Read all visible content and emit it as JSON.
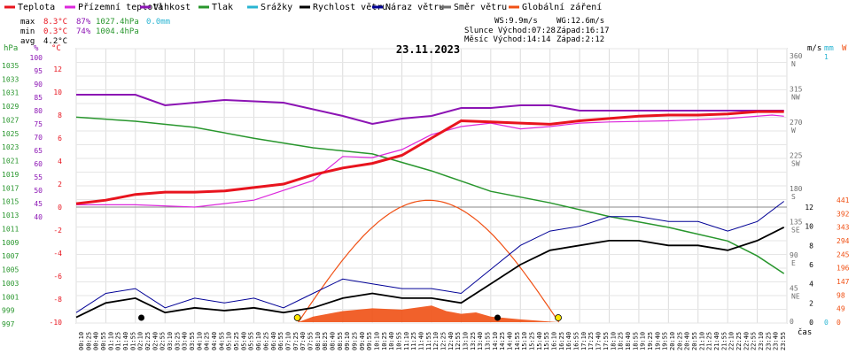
{
  "legend": [
    {
      "label": "Teplota",
      "color": "#e8141e"
    },
    {
      "label": "Přízemní teplota",
      "color": "#dc28dc"
    },
    {
      "label": "Vlhkost",
      "color": "#8c14b4"
    },
    {
      "label": "Tlak",
      "color": "#28962d"
    },
    {
      "label": "Srážky",
      "color": "#28b4d2"
    },
    {
      "label": "Rychlost větru",
      "color": "#000000"
    },
    {
      "label": "Náraz větru",
      "color": "#000096"
    },
    {
      "label": "Směr větru",
      "color": "#6e6e6e"
    },
    {
      "label": "Globální záření",
      "color": "#f05014"
    }
  ],
  "stats": {
    "max_label": "max",
    "min_label": "min",
    "avg_label": "avg",
    "max_temp": "8.3°C",
    "max_hum": "87%",
    "max_press": "1027.4hPa",
    "max_rain": "0.0mm",
    "min_temp": "0.3°C",
    "min_hum": "74%",
    "min_press": "1004.4hPa",
    "avg_temp": "4.2°C",
    "ws": "WS:9.9m/s",
    "wg": "WG:12.6m/s",
    "sun_rise": "Slunce Východ:07:28",
    "sun_set": "Západ:16:17",
    "moon_rise": "Měsíc  Východ:14:14",
    "moon_set": "Západ:2:12"
  },
  "date": "23.11.2023",
  "axis_units": {
    "hpa": "hPa",
    "pct": "%",
    "degc": "°C",
    "ms": "m/s",
    "mm": "mm",
    "wm2": "W",
    "time": "čas"
  },
  "axes": {
    "hpa_ticks": [
      "1035",
      "1033",
      "1031",
      "1029",
      "1027",
      "1025",
      "1023",
      "1021",
      "1019",
      "1017",
      "1015",
      "1013",
      "1011",
      "1009",
      "1007",
      "1005",
      "1003",
      "1001",
      "999",
      "997"
    ],
    "pct_ticks": [
      "100",
      "95",
      "90",
      "85",
      "80",
      "75",
      "70",
      "65",
      "60",
      "55",
      "50",
      "45",
      "40"
    ],
    "temp_ticks": [
      "12",
      "10",
      "8",
      "6",
      "4",
      "2",
      "0",
      "-2",
      "-4",
      "-6",
      "-8",
      "-10"
    ],
    "dir_ticks": [
      [
        "360",
        "N"
      ],
      [
        "315",
        "NW"
      ],
      [
        "270",
        "W"
      ],
      [
        "225",
        "SW"
      ],
      [
        "180",
        "S"
      ],
      [
        "135",
        "SE"
      ],
      [
        "90",
        "E"
      ],
      [
        "45",
        "NE"
      ],
      [
        "0",
        ""
      ]
    ],
    "ms_ticks": [
      "12",
      "10",
      "8",
      "6",
      "4",
      "2",
      "0"
    ],
    "mm_ticks": [
      "1",
      "0"
    ],
    "wm2_ticks": [
      "441",
      "392",
      "343",
      "294",
      "245",
      "196",
      "147",
      "98",
      "49",
      "0"
    ],
    "time_ticks": [
      "00:10",
      "00:25",
      "00:40",
      "00:55",
      "01:10",
      "01:25",
      "01:40",
      "01:55",
      "02:10",
      "02:25",
      "02:40",
      "02:55",
      "03:10",
      "03:25",
      "03:40",
      "03:55",
      "04:10",
      "04:25",
      "04:40",
      "04:55",
      "05:10",
      "05:25",
      "05:40",
      "05:55",
      "06:10",
      "06:25",
      "06:40",
      "06:55",
      "07:10",
      "07:25",
      "07:40",
      "07:55",
      "08:10",
      "08:25",
      "08:40",
      "08:55",
      "09:10",
      "09:25",
      "09:40",
      "09:55",
      "10:10",
      "10:25",
      "10:40",
      "10:55",
      "11:10",
      "11:25",
      "11:40",
      "11:55",
      "12:10",
      "12:25",
      "12:40",
      "12:55",
      "13:10",
      "13:25",
      "13:40",
      "13:55",
      "14:10",
      "14:25",
      "14:40",
      "14:55",
      "15:10",
      "15:25",
      "15:40",
      "15:55",
      "16:10",
      "16:25",
      "16:40",
      "16:55",
      "17:10",
      "17:25",
      "17:40",
      "17:55",
      "18:10",
      "18:25",
      "18:40",
      "18:55",
      "19:10",
      "19:25",
      "19:40",
      "19:55",
      "20:10",
      "20:25",
      "20:40",
      "20:55",
      "21:10",
      "21:25",
      "21:40",
      "21:55",
      "22:10",
      "22:25",
      "22:40",
      "22:55",
      "23:10",
      "23:25",
      "23:40",
      "23:55"
    ]
  },
  "chart_data": {
    "type": "line",
    "x_unit": "hour of day",
    "title": "23.11.2023",
    "series": [
      {
        "name": "Teplota",
        "unit": "°C",
        "color": "#e8141e",
        "points": [
          [
            0,
            0.3
          ],
          [
            1,
            0.6
          ],
          [
            2,
            1.1
          ],
          [
            3,
            1.3
          ],
          [
            4,
            1.3
          ],
          [
            5,
            1.4
          ],
          [
            6,
            1.7
          ],
          [
            7,
            2.0
          ],
          [
            8,
            2.8
          ],
          [
            9,
            3.4
          ],
          [
            10,
            3.8
          ],
          [
            11,
            4.5
          ],
          [
            12,
            6.0
          ],
          [
            13,
            7.5
          ],
          [
            14,
            7.4
          ],
          [
            15,
            7.3
          ],
          [
            16,
            7.2
          ],
          [
            17,
            7.5
          ],
          [
            18,
            7.7
          ],
          [
            19,
            7.9
          ],
          [
            20,
            8.0
          ],
          [
            21,
            8.0
          ],
          [
            22,
            8.1
          ],
          [
            23,
            8.3
          ],
          [
            23.9,
            8.3
          ]
        ]
      },
      {
        "name": "Přízemní teplota",
        "unit": "°C",
        "color": "#dc28dc",
        "points": [
          [
            0,
            0.2
          ],
          [
            2,
            0.2
          ],
          [
            4,
            0.0
          ],
          [
            6,
            0.6
          ],
          [
            8,
            2.3
          ],
          [
            9,
            4.4
          ],
          [
            10,
            4.3
          ],
          [
            11,
            5.0
          ],
          [
            12,
            6.3
          ],
          [
            13,
            7.0
          ],
          [
            14,
            7.3
          ],
          [
            15,
            6.8
          ],
          [
            16,
            7.0
          ],
          [
            17,
            7.3
          ],
          [
            18,
            7.4
          ],
          [
            20,
            7.5
          ],
          [
            22,
            7.7
          ],
          [
            23.5,
            8.0
          ],
          [
            23.9,
            7.9
          ]
        ]
      },
      {
        "name": "Vlhkost",
        "unit": "%",
        "color": "#8c14b4",
        "points": [
          [
            0,
            86
          ],
          [
            2,
            86
          ],
          [
            3,
            82
          ],
          [
            5,
            84
          ],
          [
            7,
            83
          ],
          [
            9,
            78
          ],
          [
            10,
            75
          ],
          [
            11,
            77
          ],
          [
            12,
            78
          ],
          [
            13,
            81
          ],
          [
            14,
            81
          ],
          [
            15,
            82
          ],
          [
            16,
            82
          ],
          [
            17,
            80
          ],
          [
            18,
            80
          ],
          [
            19,
            80
          ],
          [
            20,
            80
          ],
          [
            21,
            80
          ],
          [
            22,
            80
          ],
          [
            23,
            80
          ],
          [
            23.9,
            80
          ]
        ]
      },
      {
        "name": "Tlak",
        "unit": "hPa",
        "color": "#28962d",
        "points": [
          [
            0,
            1027.4
          ],
          [
            2,
            1026.8
          ],
          [
            4,
            1025.9
          ],
          [
            6,
            1024.3
          ],
          [
            8,
            1022.9
          ],
          [
            10,
            1022.0
          ],
          [
            12,
            1019.5
          ],
          [
            13,
            1018.0
          ],
          [
            14,
            1016.5
          ],
          [
            16,
            1014.8
          ],
          [
            18,
            1012.8
          ],
          [
            20,
            1011.2
          ],
          [
            22,
            1009.2
          ],
          [
            23,
            1007.0
          ],
          [
            23.9,
            1004.4
          ]
        ]
      },
      {
        "name": "Rychlost větru",
        "unit": "m/s",
        "color": "#000000",
        "points": [
          [
            0,
            0.5
          ],
          [
            1,
            2.0
          ],
          [
            2,
            2.5
          ],
          [
            3,
            1.0
          ],
          [
            4,
            1.5
          ],
          [
            5,
            1.2
          ],
          [
            6,
            1.5
          ],
          [
            7,
            1.0
          ],
          [
            8,
            1.5
          ],
          [
            9,
            2.5
          ],
          [
            10,
            3.0
          ],
          [
            11,
            2.5
          ],
          [
            12,
            2.5
          ],
          [
            13,
            2.0
          ],
          [
            14,
            4.0
          ],
          [
            15,
            6.0
          ],
          [
            16,
            7.5
          ],
          [
            17,
            8.0
          ],
          [
            18,
            8.5
          ],
          [
            19,
            8.5
          ],
          [
            20,
            8.0
          ],
          [
            21,
            8.0
          ],
          [
            22,
            7.5
          ],
          [
            23,
            8.5
          ],
          [
            23.9,
            9.9
          ]
        ]
      },
      {
        "name": "Náraz větru",
        "unit": "m/s",
        "color": "#000096",
        "points": [
          [
            0,
            1.0
          ],
          [
            1,
            3.0
          ],
          [
            2,
            3.5
          ],
          [
            3,
            1.5
          ],
          [
            4,
            2.5
          ],
          [
            5,
            2.0
          ],
          [
            6,
            2.5
          ],
          [
            7,
            1.5
          ],
          [
            8,
            3.0
          ],
          [
            9,
            4.5
          ],
          [
            10,
            4.0
          ],
          [
            11,
            3.5
          ],
          [
            12,
            3.5
          ],
          [
            13,
            3.0
          ],
          [
            14,
            5.5
          ],
          [
            15,
            8.0
          ],
          [
            16,
            9.5
          ],
          [
            17,
            10.0
          ],
          [
            18,
            11.0
          ],
          [
            19,
            11.0
          ],
          [
            20,
            10.5
          ],
          [
            21,
            10.5
          ],
          [
            22,
            9.5
          ],
          [
            23,
            10.5
          ],
          [
            23.9,
            12.6
          ]
        ]
      },
      {
        "name": "Globální záření",
        "unit": "W/m²",
        "color": "#f05014",
        "points": [
          [
            7.5,
            0
          ],
          [
            8,
            20
          ],
          [
            9,
            40
          ],
          [
            10,
            50
          ],
          [
            11,
            45
          ],
          [
            12,
            60
          ],
          [
            12.5,
            40
          ],
          [
            13,
            30
          ],
          [
            13.5,
            35
          ],
          [
            14,
            20
          ],
          [
            15,
            10
          ],
          [
            16,
            2
          ],
          [
            16.3,
            0
          ]
        ]
      }
    ]
  }
}
